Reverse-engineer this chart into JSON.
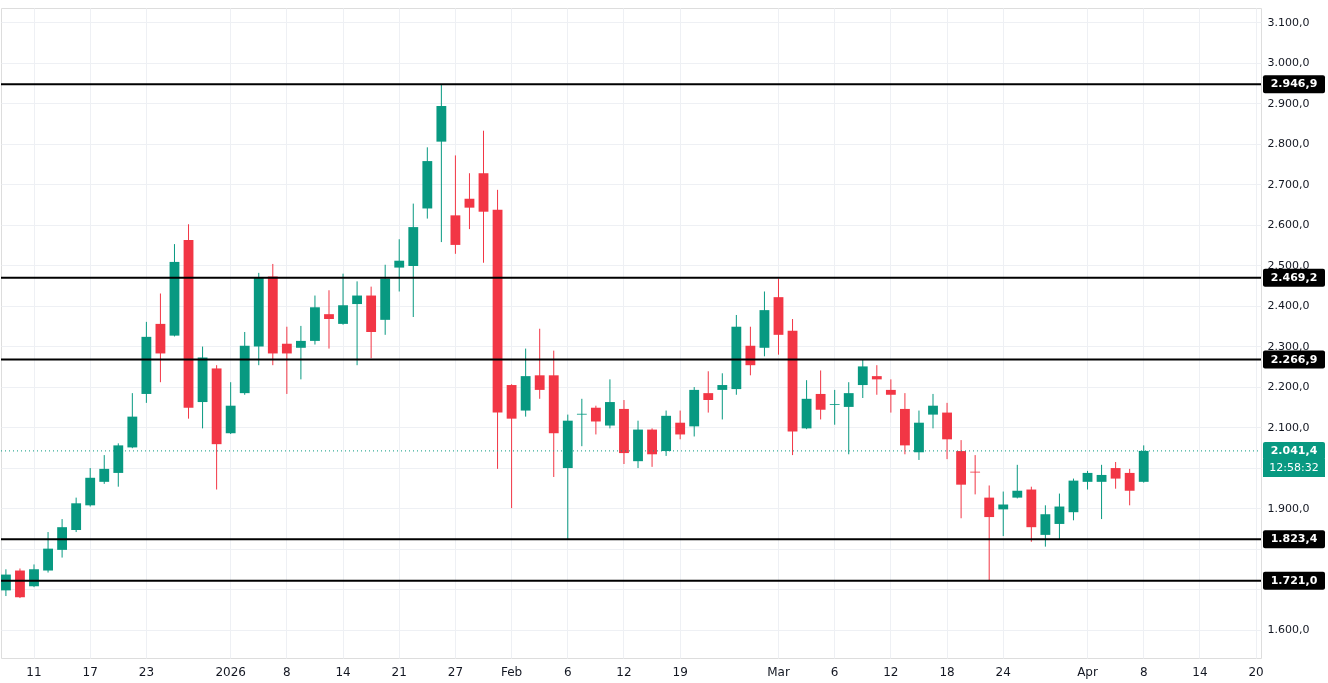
{
  "chart_data": {
    "type": "candlestick",
    "categories": [
      null,
      null,
      "11",
      null,
      null,
      null,
      "17",
      null,
      null,
      null,
      "23",
      null,
      null,
      null,
      null,
      null,
      "2026",
      null,
      null,
      null,
      "8",
      null,
      null,
      null,
      "14",
      null,
      null,
      null,
      "21",
      null,
      null,
      null,
      "27",
      null,
      null,
      null,
      "Feb",
      null,
      null,
      null,
      "6",
      null,
      null,
      null,
      "12",
      null,
      null,
      null,
      "19",
      null,
      null,
      null,
      null,
      null,
      null,
      "Mar",
      null,
      null,
      null,
      "6",
      null,
      null,
      null,
      "12",
      null,
      null,
      null,
      "18",
      null,
      null,
      null,
      "24",
      null,
      null,
      null,
      null,
      null,
      "Apr",
      null,
      null,
      null,
      "8",
      null,
      null,
      null,
      "14",
      null,
      null,
      null,
      "20"
    ],
    "ohlc": [
      [
        1697,
        1749,
        1683,
        1736
      ],
      [
        1746,
        1751,
        1678,
        1680
      ],
      [
        1707,
        1761,
        1705,
        1749
      ],
      [
        1746,
        1841,
        1741,
        1800
      ],
      [
        1797,
        1873,
        1778,
        1853
      ],
      [
        1846,
        1926,
        1841,
        1912
      ],
      [
        1907,
        1999,
        1904,
        1975
      ],
      [
        1965,
        2031,
        1960,
        1997
      ],
      [
        1987,
        2060,
        1953,
        2055
      ],
      [
        2050,
        2184,
        2048,
        2126
      ],
      [
        2182,
        2360,
        2160,
        2323
      ],
      [
        2355,
        2430,
        2211,
        2282
      ],
      [
        2326,
        2552,
        2324,
        2508
      ],
      [
        2562,
        2601,
        2121,
        2148
      ],
      [
        2162,
        2299,
        2097,
        2272
      ],
      [
        2245,
        2253,
        1946,
        2058
      ],
      [
        2085,
        2211,
        2083,
        2153
      ],
      [
        2184,
        2335,
        2180,
        2301
      ],
      [
        2299,
        2481,
        2253,
        2469
      ],
      [
        2472,
        2503,
        2253,
        2282
      ],
      [
        2306,
        2348,
        2182,
        2282
      ],
      [
        2296,
        2350,
        2218,
        2313
      ],
      [
        2313,
        2425,
        2304,
        2396
      ],
      [
        2379,
        2438,
        2294,
        2367
      ],
      [
        2355,
        2479,
        2353,
        2401
      ],
      [
        2404,
        2460,
        2253,
        2425
      ],
      [
        2425,
        2447,
        2270,
        2335
      ],
      [
        2365,
        2501,
        2328,
        2467
      ],
      [
        2494,
        2564,
        2435,
        2511
      ],
      [
        2498,
        2652,
        2372,
        2594
      ],
      [
        2640,
        2791,
        2615,
        2757
      ],
      [
        2805,
        2946.9,
        2557,
        2893
      ],
      [
        2623,
        2771,
        2528,
        2550
      ],
      [
        2664,
        2727,
        2589,
        2642
      ],
      [
        2727,
        2832,
        2506,
        2632
      ],
      [
        2637,
        2686,
        1997,
        2136
      ],
      [
        2204,
        2206,
        1900,
        2121
      ],
      [
        2141,
        2294,
        2126,
        2226
      ],
      [
        2228,
        2343,
        2170,
        2192
      ],
      [
        2228,
        2289,
        1977,
        2085
      ],
      [
        1999,
        2131,
        1824,
        2116
      ],
      [
        2131,
        2170,
        2053,
        2133
      ],
      [
        2148,
        2153,
        2082,
        2114
      ],
      [
        2104,
        2218,
        2097,
        2162
      ],
      [
        2145,
        2167,
        2009,
        2036
      ],
      [
        2016,
        2116,
        1999,
        2094
      ],
      [
        2094,
        2097,
        2002,
        2033
      ],
      [
        2041,
        2141,
        2029,
        2128
      ],
      [
        2111,
        2141,
        2070,
        2082
      ],
      [
        2102,
        2199,
        2077,
        2192
      ],
      [
        2184,
        2238,
        2136,
        2167
      ],
      [
        2192,
        2233,
        2119,
        2204
      ],
      [
        2194,
        2377,
        2180,
        2348
      ],
      [
        2301,
        2348,
        2228,
        2253
      ],
      [
        2296,
        2435,
        2275,
        2389
      ],
      [
        2421,
        2467,
        2279,
        2328
      ],
      [
        2338,
        2367,
        2031,
        2089
      ],
      [
        2097,
        2216,
        2095,
        2170
      ],
      [
        2182,
        2240,
        2119,
        2143
      ],
      [
        2155,
        2192,
        2106,
        2157
      ],
      [
        2150,
        2211,
        2033,
        2184
      ],
      [
        2204,
        2267,
        2172,
        2250
      ],
      [
        2226,
        2253,
        2180,
        2218
      ],
      [
        2192,
        2218,
        2136,
        2180
      ],
      [
        2145,
        2184,
        2033,
        2055
      ],
      [
        2038,
        2141,
        2019,
        2111
      ],
      [
        2131,
        2182,
        2097,
        2153
      ],
      [
        2136,
        2160,
        2021,
        2070
      ],
      [
        2041,
        2068,
        1875,
        1958
      ],
      [
        1990,
        2031,
        1934,
        1988
      ],
      [
        1926,
        1956,
        1721,
        1878
      ],
      [
        1897,
        1941,
        1831,
        1909
      ],
      [
        1926,
        2007,
        1924,
        1943
      ],
      [
        1946,
        1953,
        1817,
        1853
      ],
      [
        1834,
        1907,
        1805,
        1885
      ],
      [
        1861,
        1936,
        1822,
        1904
      ],
      [
        1890,
        1973,
        1870,
        1968
      ],
      [
        1965,
        1992,
        1946,
        1987
      ],
      [
        1965,
        2007,
        1873,
        1982
      ],
      [
        1999,
        2014,
        1948,
        1973
      ],
      [
        1987,
        1997,
        1907,
        1943
      ],
      [
        1965,
        2055,
        1963,
        2041.4
      ],
      null,
      null,
      null,
      null,
      null,
      null,
      null,
      null
    ],
    "colors": [
      "#089981",
      "#f23645",
      "#089981",
      "#089981",
      "#089981",
      "#089981",
      "#089981",
      "#089981",
      "#089981",
      "#089981",
      "#089981",
      "#f23645",
      "#089981",
      "#f23645",
      "#089981",
      "#f23645",
      "#089981",
      "#089981",
      "#089981",
      "#f23645",
      "#f23645",
      "#089981",
      "#089981",
      "#f23645",
      "#089981",
      "#089981",
      "#f23645",
      "#089981",
      "#089981",
      "#089981",
      "#089981",
      "#089981",
      "#f23645",
      "#f23645",
      "#f23645",
      "#f23645",
      "#f23645",
      "#089981",
      "#f23645",
      "#f23645",
      "#089981",
      "#089981",
      "#f23645",
      "#089981",
      "#f23645",
      "#089981",
      "#f23645",
      "#089981",
      "#f23645",
      "#089981",
      "#f23645",
      "#089981",
      "#089981",
      "#f23645",
      "#089981",
      "#f23645",
      "#f23645",
      "#089981",
      "#f23645",
      "#089981",
      "#089981",
      "#089981",
      "#f23645",
      "#f23645",
      "#f23645",
      "#089981",
      "#089981",
      "#f23645",
      "#f23645",
      "#f23645",
      "#f23645",
      "#089981",
      "#089981",
      "#f23645",
      "#089981",
      "#089981",
      "#089981",
      "#089981",
      "#089981",
      "#f23645",
      "#f23645",
      "#089981",
      null,
      null,
      null,
      null,
      null,
      null,
      null,
      null
    ],
    "ylim": [
      1530,
      3135
    ],
    "yticks": [
      {
        "value": 1600,
        "label": "1.600,0"
      },
      {
        "value": 1700,
        "label": null
      },
      {
        "value": 1800,
        "label": null
      },
      {
        "value": 1900,
        "label": "1.900,0"
      },
      {
        "value": 2000,
        "label": null
      },
      {
        "value": 2100,
        "label": "2.100,0"
      },
      {
        "value": 2200,
        "label": "2.200,0"
      },
      {
        "value": 2300,
        "label": "2.300,0"
      },
      {
        "value": 2400,
        "label": "2.400,0"
      },
      {
        "value": 2500,
        "label": "2.500,0"
      },
      {
        "value": 2600,
        "label": "2.600,0"
      },
      {
        "value": 2700,
        "label": "2.700,0"
      },
      {
        "value": 2800,
        "label": "2.800,0"
      },
      {
        "value": 2900,
        "label": "2.900,0"
      },
      {
        "value": 3000,
        "label": "3.000,0"
      },
      {
        "value": 3100,
        "label": "3.100,0"
      }
    ],
    "ref_lines": [
      {
        "axis": "y",
        "value": 2946.9,
        "label": "2.946,9",
        "color": "#000000",
        "line_style": "solid"
      },
      {
        "axis": "y",
        "value": 2469.2,
        "label": "2.469,2",
        "color": "#000000",
        "line_style": "solid"
      },
      {
        "axis": "y",
        "value": 2266.9,
        "label": "2.266,9",
        "color": "#000000",
        "line_style": "solid"
      },
      {
        "axis": "y",
        "value": 2041.4,
        "label": "2.041,4",
        "color": "#089981",
        "line_style": "dotted"
      },
      {
        "axis": "y",
        "value": 1823.4,
        "label": "1.823,4",
        "color": "#000000",
        "line_style": "solid"
      },
      {
        "axis": "y",
        "value": 1721.0,
        "label": "1.721,0",
        "color": "#000000",
        "line_style": "solid"
      }
    ],
    "annotations": [
      "12:58:32"
    ],
    "grid": true
  }
}
